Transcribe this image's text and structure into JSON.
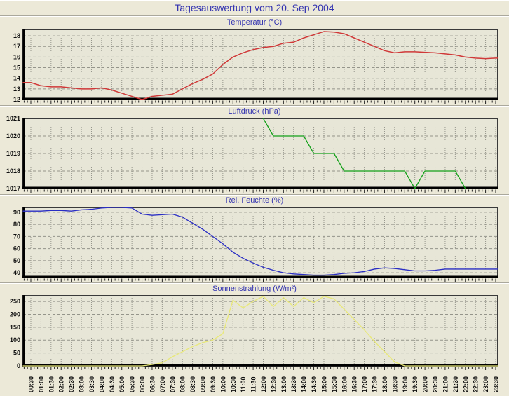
{
  "page": {
    "title": "Tagesauswertung vom 20. Sep 2004"
  },
  "colors": {
    "background": "#ece9d8",
    "plot_background": "#e7e6d7",
    "grid": "#94948a",
    "axis": "#000000",
    "title_blue": "#3434b0",
    "temperature_line": "#d03838",
    "pressure_line": "#12a018",
    "humidity_line": "#2a2ec4",
    "radiation_line": "#e8e878"
  },
  "chart_data": {
    "type": "line",
    "x": [
      "00:30",
      "01:00",
      "01:30",
      "02:00",
      "02:30",
      "03:00",
      "03:30",
      "04:00",
      "04:30",
      "05:00",
      "05:30",
      "06:00",
      "06:30",
      "07:00",
      "07:30",
      "08:00",
      "08:30",
      "09:00",
      "09:30",
      "10:00",
      "10:30",
      "11:00",
      "11:30",
      "12:00",
      "12:30",
      "13:00",
      "13:30",
      "14:00",
      "14:30",
      "15:00",
      "15:30",
      "16:00",
      "16:30",
      "17:00",
      "17:30",
      "18:00",
      "18:30",
      "19:00",
      "19:30",
      "20:00",
      "20:30",
      "21:00",
      "21:30",
      "22:00",
      "22:30",
      "23:00",
      "23:30"
    ],
    "grid": "on",
    "panels": [
      {
        "title": "Temperatur (°C)",
        "color": "#d03838",
        "ylim": [
          12,
          18.6
        ],
        "yticks": [
          12,
          13,
          14,
          15,
          16,
          17,
          18
        ],
        "values": [
          13.6,
          13.3,
          13.2,
          13.2,
          13.1,
          13.0,
          13.0,
          13.1,
          12.9,
          12.6,
          12.3,
          12.0,
          12.3,
          12.4,
          12.5,
          13.0,
          13.5,
          13.9,
          14.4,
          15.3,
          16.0,
          16.4,
          16.7,
          16.9,
          17.0,
          17.3,
          17.4,
          17.8,
          18.1,
          18.4,
          18.35,
          18.2,
          17.8,
          17.4,
          17.0,
          16.6,
          16.4,
          16.5,
          16.5,
          16.45,
          16.4,
          16.3,
          16.2,
          16.0,
          15.9,
          15.85,
          15.9
        ]
      },
      {
        "title": "Luftdruck (hPa)",
        "color": "#12a018",
        "ylim": [
          1017,
          1021
        ],
        "yticks": [
          1017,
          1018,
          1019,
          1020,
          1021
        ],
        "values": [
          null,
          null,
          null,
          null,
          null,
          null,
          null,
          null,
          null,
          null,
          null,
          null,
          null,
          null,
          null,
          null,
          null,
          null,
          null,
          null,
          null,
          null,
          null,
          1021,
          1020,
          1020,
          1020,
          1020,
          1019,
          1019,
          1019,
          1018,
          1018,
          1018,
          1018,
          1018,
          1018,
          1018,
          1017,
          1018,
          1018,
          1018,
          1018,
          1017,
          null,
          null,
          null
        ]
      },
      {
        "title": "Rel. Feuchte (%)",
        "color": "#2a2ec4",
        "ylim": [
          36,
          94
        ],
        "yticks": [
          40,
          50,
          60,
          70,
          80,
          90
        ],
        "values": [
          91,
          91,
          91.5,
          91.5,
          91,
          92,
          92.5,
          93.5,
          94,
          94,
          93.5,
          88.5,
          87.5,
          88,
          88.5,
          86,
          81,
          76,
          70,
          64,
          57,
          52,
          48,
          44.5,
          42,
          40,
          39,
          38.5,
          38,
          38,
          38.5,
          39.5,
          40,
          41,
          43,
          44,
          43.5,
          42.5,
          41.5,
          41.5,
          42,
          43,
          43,
          43,
          43,
          43,
          43
        ]
      },
      {
        "title": "Sonnenstrahlung (W/m²)",
        "color": "#e8e878",
        "ylim": [
          0,
          272
        ],
        "yticks": [
          0,
          50,
          100,
          150,
          200,
          250
        ],
        "values": [
          0,
          0,
          0,
          0,
          0,
          0,
          0,
          0,
          0,
          0,
          0,
          0,
          5,
          12,
          35,
          55,
          75,
          90,
          100,
          125,
          255,
          225,
          250,
          270,
          230,
          265,
          230,
          265,
          245,
          270,
          260,
          220,
          180,
          140,
          95,
          55,
          15,
          0,
          0,
          0,
          0,
          0,
          0,
          0,
          0,
          0,
          0
        ]
      }
    ]
  }
}
